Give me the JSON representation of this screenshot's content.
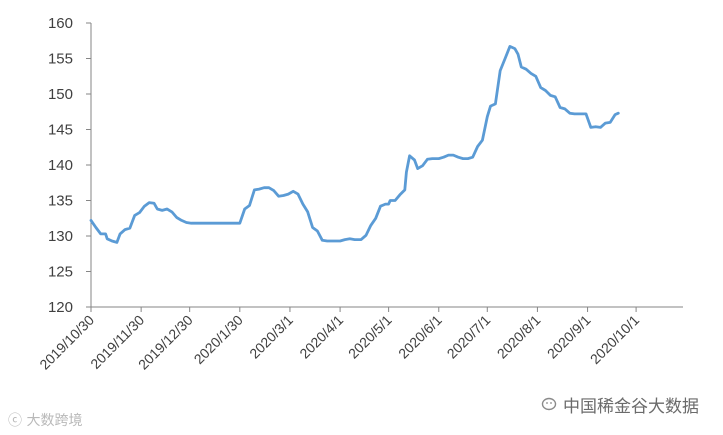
{
  "chart_data": {
    "type": "line",
    "title": "",
    "xlabel": "",
    "ylabel": "",
    "ylim": [
      120,
      160
    ],
    "yticks": [
      120,
      125,
      130,
      135,
      140,
      145,
      150,
      155,
      160
    ],
    "grid": false,
    "legend": "none",
    "x_tick_labels": [
      "2019/10/30",
      "2019/11/30",
      "2019/12/30",
      "2020/1/30",
      "2020/3/1",
      "2020/4/1",
      "2020/5/1",
      "2020/6/1",
      "2020/7/1",
      "2020/8/1",
      "2020/9/1",
      "2020/10/1"
    ],
    "line_color": "#5b9bd5",
    "series": [
      {
        "points": [
          [
            "2019/10/30",
            132.2
          ],
          [
            "2019/11/2",
            131.2
          ],
          [
            "2019/11/5",
            130.3
          ],
          [
            "2019/11/8",
            130.3
          ],
          [
            "2019/11/9",
            129.6
          ],
          [
            "2019/11/12",
            129.3
          ],
          [
            "2019/11/15",
            129.1
          ],
          [
            "2019/11/17",
            130.3
          ],
          [
            "2019/11/20",
            130.9
          ],
          [
            "2019/11/23",
            131.1
          ],
          [
            "2019/11/26",
            132.9
          ],
          [
            "2019/11/29",
            133.3
          ],
          [
            "2019/12/2",
            134.2
          ],
          [
            "2019/12/5",
            134.7
          ],
          [
            "2019/12/8",
            134.6
          ],
          [
            "2019/12/10",
            133.8
          ],
          [
            "2019/12/13",
            133.6
          ],
          [
            "2019/12/16",
            133.8
          ],
          [
            "2019/12/19",
            133.4
          ],
          [
            "2019/12/22",
            132.6
          ],
          [
            "2019/12/25",
            132.2
          ],
          [
            "2019/12/28",
            131.9
          ],
          [
            "2019/12/31",
            131.8
          ],
          [
            "2020/1/10",
            131.8
          ],
          [
            "2020/1/20",
            131.8
          ],
          [
            "2020/1/30",
            131.8
          ],
          [
            "2020/2/2",
            133.8
          ],
          [
            "2020/2/5",
            134.3
          ],
          [
            "2020/2/8",
            136.5
          ],
          [
            "2020/2/11",
            136.6
          ],
          [
            "2020/2/14",
            136.8
          ],
          [
            "2020/2/17",
            136.8
          ],
          [
            "2020/2/20",
            136.4
          ],
          [
            "2020/2/23",
            135.6
          ],
          [
            "2020/2/26",
            135.7
          ],
          [
            "2020/2/29",
            135.9
          ],
          [
            "2020/3/3",
            136.3
          ],
          [
            "2020/3/6",
            135.9
          ],
          [
            "2020/3/9",
            134.5
          ],
          [
            "2020/3/12",
            133.4
          ],
          [
            "2020/3/15",
            131.2
          ],
          [
            "2020/3/18",
            130.7
          ],
          [
            "2020/3/21",
            129.4
          ],
          [
            "2020/3/24",
            129.3
          ],
          [
            "2020/3/28",
            129.3
          ],
          [
            "2020/4/1",
            129.3
          ],
          [
            "2020/4/4",
            129.5
          ],
          [
            "2020/4/7",
            129.6
          ],
          [
            "2020/4/10",
            129.5
          ],
          [
            "2020/4/14",
            129.5
          ],
          [
            "2020/4/17",
            130.1
          ],
          [
            "2020/4/20",
            131.5
          ],
          [
            "2020/4/23",
            132.5
          ],
          [
            "2020/4/26",
            134.2
          ],
          [
            "2020/4/29",
            134.5
          ],
          [
            "2020/5/1",
            134.5
          ],
          [
            "2020/5/2",
            135.0
          ],
          [
            "2020/5/5",
            135.0
          ],
          [
            "2020/5/8",
            135.8
          ],
          [
            "2020/5/11",
            136.5
          ],
          [
            "2020/5/12",
            139.0
          ],
          [
            "2020/5/14",
            141.3
          ],
          [
            "2020/5/17",
            140.7
          ],
          [
            "2020/5/19",
            139.5
          ],
          [
            "2020/5/22",
            139.9
          ],
          [
            "2020/5/25",
            140.8
          ],
          [
            "2020/5/28",
            140.9
          ],
          [
            "2020/6/1",
            140.9
          ],
          [
            "2020/6/4",
            141.1
          ],
          [
            "2020/6/7",
            141.4
          ],
          [
            "2020/6/10",
            141.4
          ],
          [
            "2020/6/13",
            141.1
          ],
          [
            "2020/6/16",
            140.9
          ],
          [
            "2020/6/19",
            140.9
          ],
          [
            "2020/6/22",
            141.1
          ],
          [
            "2020/6/25",
            142.6
          ],
          [
            "2020/6/28",
            143.5
          ],
          [
            "2020/7/1",
            146.8
          ],
          [
            "2020/7/3",
            148.3
          ],
          [
            "2020/7/6",
            148.6
          ],
          [
            "2020/7/9",
            153.3
          ],
          [
            "2020/7/12",
            155.0
          ],
          [
            "2020/7/15",
            156.7
          ],
          [
            "2020/7/18",
            156.4
          ],
          [
            "2020/7/20",
            155.6
          ],
          [
            "2020/7/22",
            153.8
          ],
          [
            "2020/7/25",
            153.5
          ],
          [
            "2020/7/28",
            152.9
          ],
          [
            "2020/7/31",
            152.5
          ],
          [
            "2020/8/3",
            150.9
          ],
          [
            "2020/8/6",
            150.5
          ],
          [
            "2020/8/9",
            149.8
          ],
          [
            "2020/8/12",
            149.6
          ],
          [
            "2020/8/15",
            148.1
          ],
          [
            "2020/8/18",
            147.9
          ],
          [
            "2020/8/21",
            147.3
          ],
          [
            "2020/8/24",
            147.2
          ],
          [
            "2020/8/31",
            147.2
          ],
          [
            "2020/9/3",
            145.3
          ],
          [
            "2020/9/6",
            145.4
          ],
          [
            "2020/9/9",
            145.3
          ],
          [
            "2020/9/12",
            145.9
          ],
          [
            "2020/9/15",
            146.0
          ],
          [
            "2020/9/18",
            147.1
          ],
          [
            "2020/9/20",
            147.3
          ]
        ]
      }
    ]
  },
  "watermark": {
    "left": "ⓒ 大数跨境",
    "right": "中国稀金谷大数据"
  }
}
